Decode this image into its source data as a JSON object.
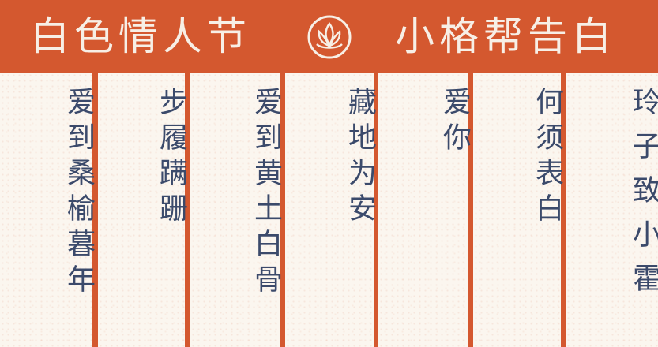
{
  "header": {
    "left_title": "白色情人节",
    "right_title": "小格帮告白",
    "emblem_icon": "lotus-emblem-icon"
  },
  "colors": {
    "accent": "#d4582f",
    "panel": "#fbf6ef",
    "text": "#3b4a6b",
    "header_text": "#f7efe6"
  },
  "panels": [
    {
      "text": "爱到桑榆暮年"
    },
    {
      "text": "步履蹒跚"
    },
    {
      "text": "爱到黄土白骨"
    },
    {
      "text": "藏地为安"
    },
    {
      "text": "爱你"
    },
    {
      "text": "何须表白"
    },
    {
      "text": "玲子致小霍"
    }
  ]
}
